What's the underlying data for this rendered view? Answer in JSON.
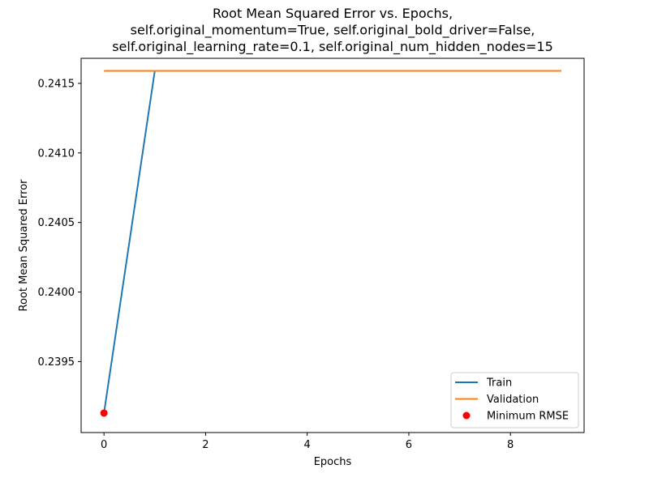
{
  "chart_data": {
    "type": "line",
    "title_lines": [
      "Root Mean Squared Error vs. Epochs,",
      "self.original_momentum=True, self.original_bold_driver=False,",
      "self.original_learning_rate=0.1, self.original_num_hidden_nodes=15"
    ],
    "xlabel": "Epochs",
    "ylabel": "Root Mean Squared Error",
    "xlim": [
      -0.45,
      9.45
    ],
    "ylim": [
      0.23899,
      0.24168
    ],
    "xticks": [
      0,
      2,
      4,
      6,
      8
    ],
    "xtick_labels": [
      "0",
      "2",
      "4",
      "6",
      "8"
    ],
    "yticks": [
      0.2395,
      0.24,
      0.2405,
      0.241,
      0.2415
    ],
    "ytick_labels": [
      "0.2395",
      "0.2400",
      "0.2405",
      "0.2410",
      "0.2415"
    ],
    "grid": false,
    "legend_position": "lower-right",
    "series": [
      {
        "name": "Train",
        "color": "#1f77b4",
        "x": [
          0,
          1,
          2,
          3,
          4,
          5,
          6,
          7,
          8,
          9
        ],
        "values": [
          0.23913,
          0.24159,
          0.24159,
          0.24159,
          0.24159,
          0.24159,
          0.24159,
          0.24159,
          0.24159,
          0.24159
        ]
      },
      {
        "name": "Validation",
        "color": "#ff7f0e",
        "x": [
          0,
          1,
          2,
          3,
          4,
          5,
          6,
          7,
          8,
          9
        ],
        "values": [
          0.24159,
          0.24159,
          0.24159,
          0.24159,
          0.24159,
          0.24159,
          0.24159,
          0.24159,
          0.24159,
          0.24159
        ]
      }
    ],
    "markers": [
      {
        "name": "Minimum RMSE",
        "color": "#ff0000",
        "x": 0,
        "y": 0.23913
      }
    ]
  }
}
